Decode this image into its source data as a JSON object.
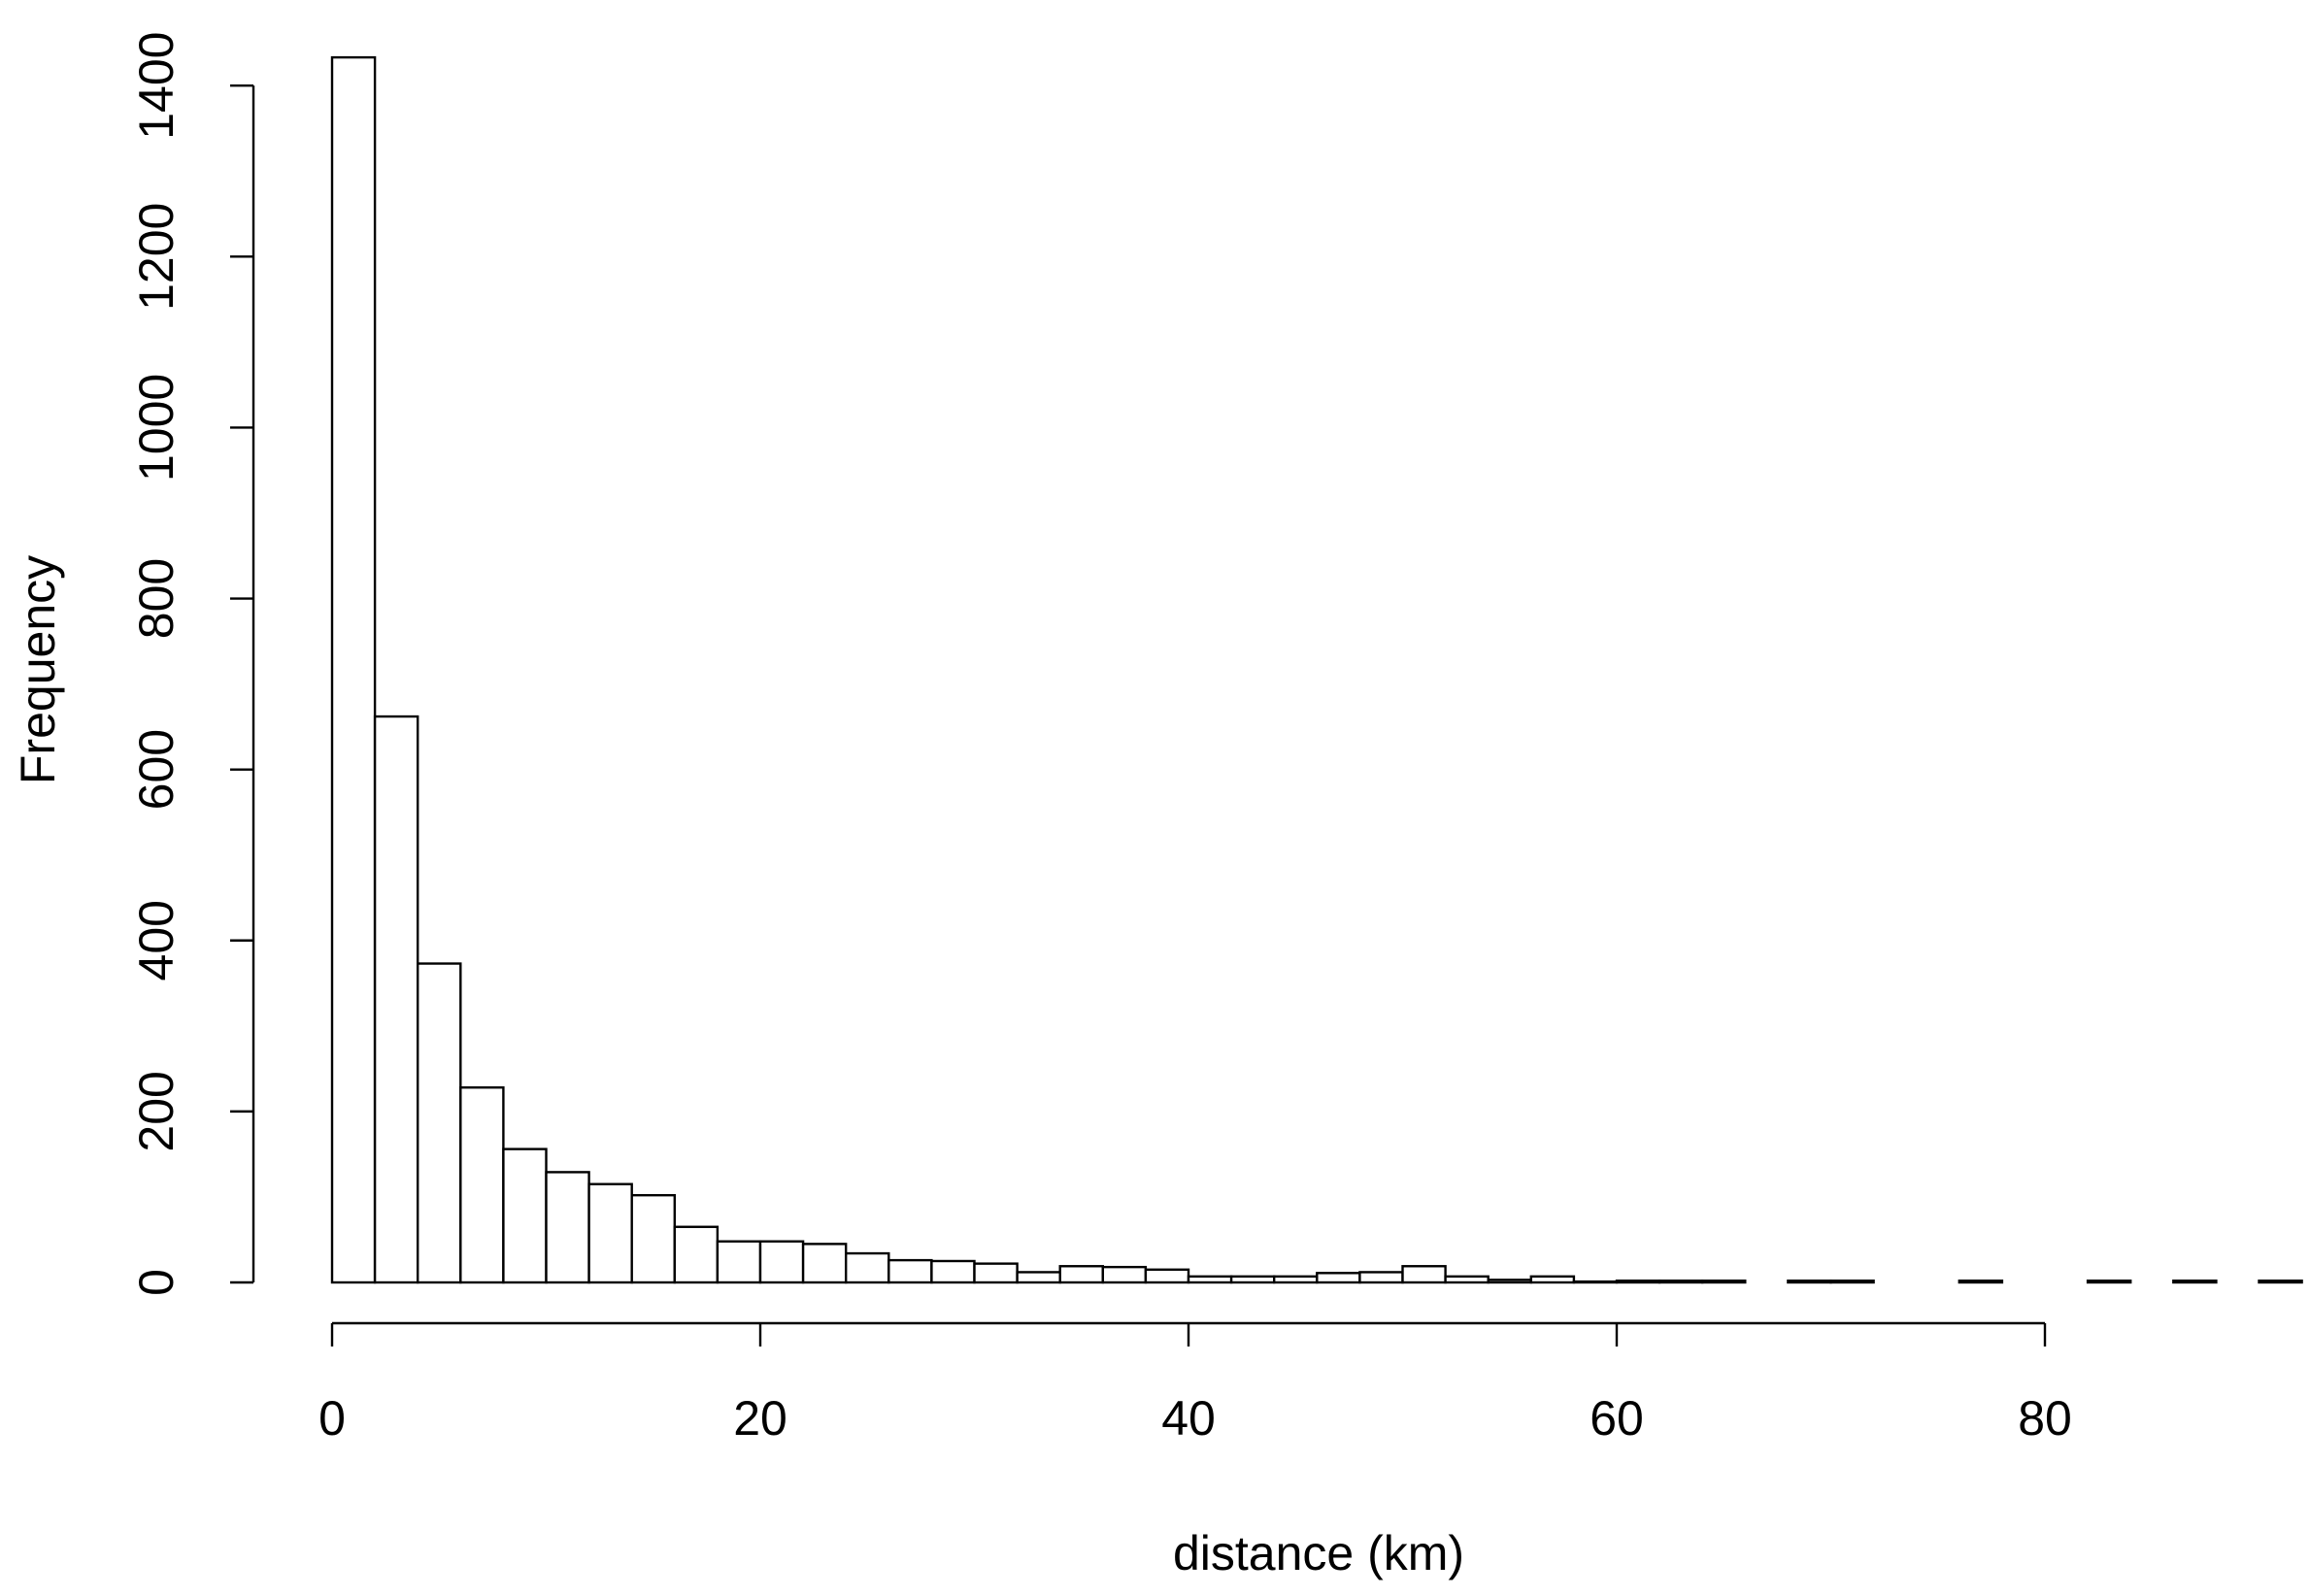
{
  "chart_data": {
    "type": "bar",
    "title": "",
    "xlabel": "distance (km)",
    "ylabel": "Frequency",
    "bin_width": 2,
    "bins": [
      [
        0,
        2,
        1433
      ],
      [
        2,
        4,
        662
      ],
      [
        4,
        6,
        373
      ],
      [
        6,
        8,
        228
      ],
      [
        8,
        10,
        156
      ],
      [
        10,
        12,
        129
      ],
      [
        12,
        14,
        115
      ],
      [
        14,
        16,
        102
      ],
      [
        16,
        18,
        65
      ],
      [
        18,
        20,
        48
      ],
      [
        20,
        22,
        48
      ],
      [
        22,
        24,
        45
      ],
      [
        24,
        26,
        34
      ],
      [
        26,
        28,
        26
      ],
      [
        28,
        30,
        25
      ],
      [
        30,
        32,
        22
      ],
      [
        32,
        34,
        12
      ],
      [
        34,
        36,
        19
      ],
      [
        36,
        38,
        18
      ],
      [
        38,
        40,
        15
      ],
      [
        40,
        42,
        7
      ],
      [
        42,
        44,
        7
      ],
      [
        44,
        46,
        7
      ],
      [
        46,
        48,
        11
      ],
      [
        48,
        50,
        12
      ],
      [
        50,
        52,
        19
      ],
      [
        52,
        54,
        7
      ],
      [
        54,
        56,
        3
      ],
      [
        56,
        58,
        7
      ],
      [
        58,
        60,
        1
      ],
      [
        60,
        62,
        2
      ],
      [
        62,
        64,
        2
      ],
      [
        64,
        66,
        2
      ],
      [
        66,
        68,
        0
      ],
      [
        68,
        70,
        2
      ],
      [
        70,
        72,
        2
      ],
      [
        72,
        74,
        0
      ],
      [
        74,
        76,
        0
      ],
      [
        76,
        78,
        2
      ],
      [
        78,
        80,
        0
      ],
      [
        80,
        82,
        0
      ],
      [
        82,
        84,
        2
      ],
      [
        84,
        86,
        0
      ],
      [
        86,
        88,
        2
      ],
      [
        88,
        90,
        0
      ],
      [
        90,
        92,
        2
      ]
    ],
    "x_ticks": [
      0,
      20,
      40,
      60,
      80
    ],
    "y_ticks": [
      0,
      200,
      400,
      600,
      800,
      1000,
      1200,
      1400
    ],
    "xlim": [
      0,
      92
    ],
    "ylim": [
      0,
      1433
    ],
    "grid": false,
    "legend": "none"
  }
}
